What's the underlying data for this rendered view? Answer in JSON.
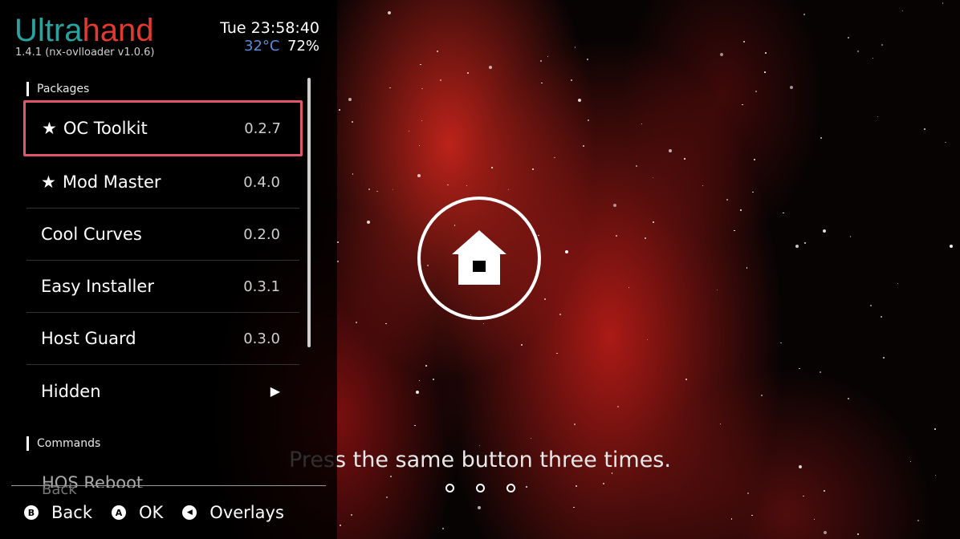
{
  "app": {
    "title_part1": "Ultra",
    "title_part2": "hand",
    "version": "1.4.1   (nx-ovlloader v1.0.6)"
  },
  "status": {
    "clock": "Tue 23:58:40",
    "temperature": "32°C",
    "battery": "72%"
  },
  "sections": {
    "packages": "Packages",
    "commands": "Commands"
  },
  "packages": [
    {
      "name": "OC Toolkit",
      "version": "0.2.7",
      "starred": true,
      "selected": true
    },
    {
      "name": "Mod Master",
      "version": "0.4.0",
      "starred": true
    },
    {
      "name": "Cool Curves",
      "version": "0.2.0"
    },
    {
      "name": "Easy Installer",
      "version": "0.3.1"
    },
    {
      "name": "Host Guard",
      "version": "0.3.0"
    },
    {
      "name": "Hidden",
      "version": "▶"
    }
  ],
  "commands": {
    "partial_item": "HOS Reboot",
    "ghost_back": "Back"
  },
  "footer": {
    "back_key": "B",
    "back_label": "Back",
    "ok_key": "A",
    "ok_label": "OK",
    "overlays_key": "◀",
    "overlays_label": "Overlays"
  },
  "hint": "Press the same button three times.",
  "colors": {
    "accent_teal": "#2aa3a0",
    "accent_red": "#e23a2f",
    "selection_border": "#e0566a",
    "temperature": "#5b8dd6"
  },
  "icons": {
    "star": "star-icon",
    "submenu": "chevron-right-icon",
    "home": "home-icon"
  }
}
